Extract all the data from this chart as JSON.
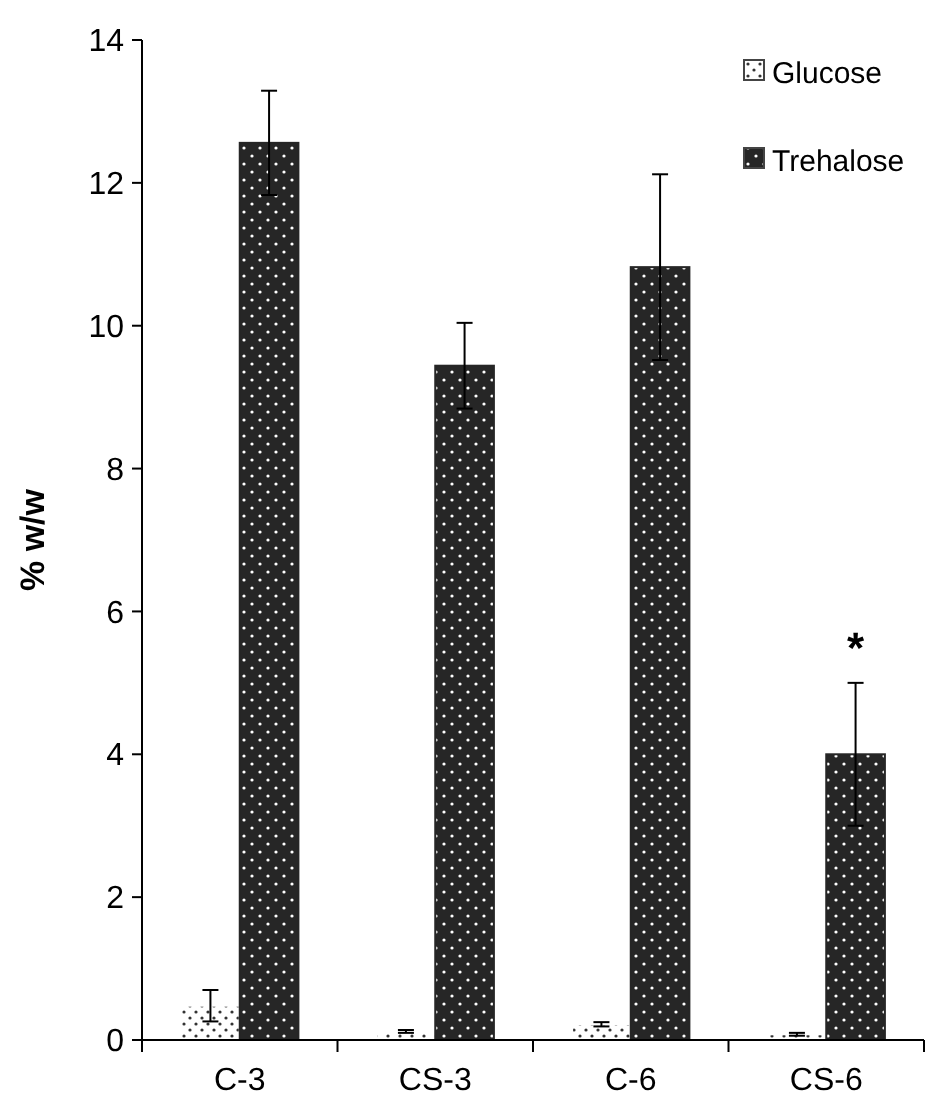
{
  "chart_data": {
    "type": "bar",
    "ylabel": "% w/w",
    "categories": [
      "C-3",
      "CS-3",
      "C-6",
      "CS-6"
    ],
    "series": [
      {
        "name": "Glucose",
        "color": "#ffffff",
        "values": [
          0.48,
          0.12,
          0.22,
          0.08
        ],
        "errors": [
          0.22,
          0.02,
          0.03,
          0.02
        ]
      },
      {
        "name": "Trehalose",
        "color": "#262626",
        "values": [
          12.56,
          9.44,
          10.82,
          4.0
        ],
        "errors": [
          0.73,
          0.6,
          1.3,
          1.0
        ]
      }
    ],
    "ylim": [
      0,
      14
    ],
    "yticks": [
      0,
      2,
      4,
      6,
      8,
      10,
      12,
      14
    ],
    "grid": false,
    "legend": "top right",
    "annotations": [
      "*"
    ]
  }
}
